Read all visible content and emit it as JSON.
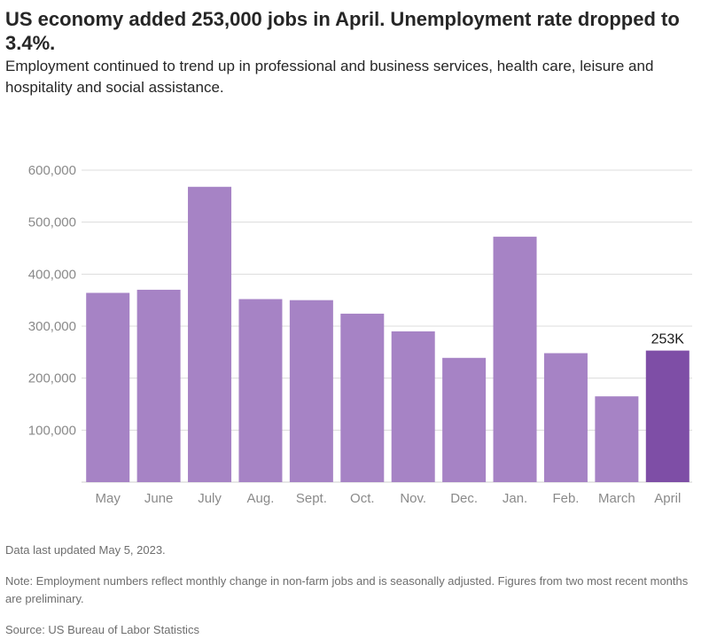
{
  "title": "US economy added 253,000 jobs in April. Unemployment rate dropped to 3.4%.",
  "subtitle": "Employment continued to trend up in professional and business services, health care, leisure and hospitality and social assistance.",
  "footer": {
    "updated": "Data last updated May 5, 2023.",
    "note": "Note: Employment numbers reflect monthly change in non-farm jobs and is seasonally adjusted. Figures from two most recent months are preliminary.",
    "source": "Source: US Bureau of Labor Statistics"
  },
  "colors": {
    "bar": "#a683c5",
    "highlight": "#7e4ea6",
    "grid": "#dcdcdc",
    "tick_text": "#8a8a8a"
  },
  "chart_data": {
    "type": "bar",
    "categories": [
      "May",
      "June",
      "July",
      "Aug.",
      "Sept.",
      "Oct.",
      "Nov.",
      "Dec.",
      "Jan.",
      "Feb.",
      "March",
      "April"
    ],
    "values": [
      364000,
      370000,
      568000,
      352000,
      350000,
      324000,
      290000,
      239000,
      472000,
      248000,
      165000,
      253000
    ],
    "highlight_index": 11,
    "annotation": {
      "index": 11,
      "text": "253K"
    },
    "yticks": [
      "100,000",
      "200,000",
      "300,000",
      "400,000",
      "500,000",
      "600,000"
    ],
    "ytick_values": [
      100000,
      200000,
      300000,
      400000,
      500000,
      600000
    ],
    "ylim": [
      0,
      600000
    ],
    "grid": true
  }
}
